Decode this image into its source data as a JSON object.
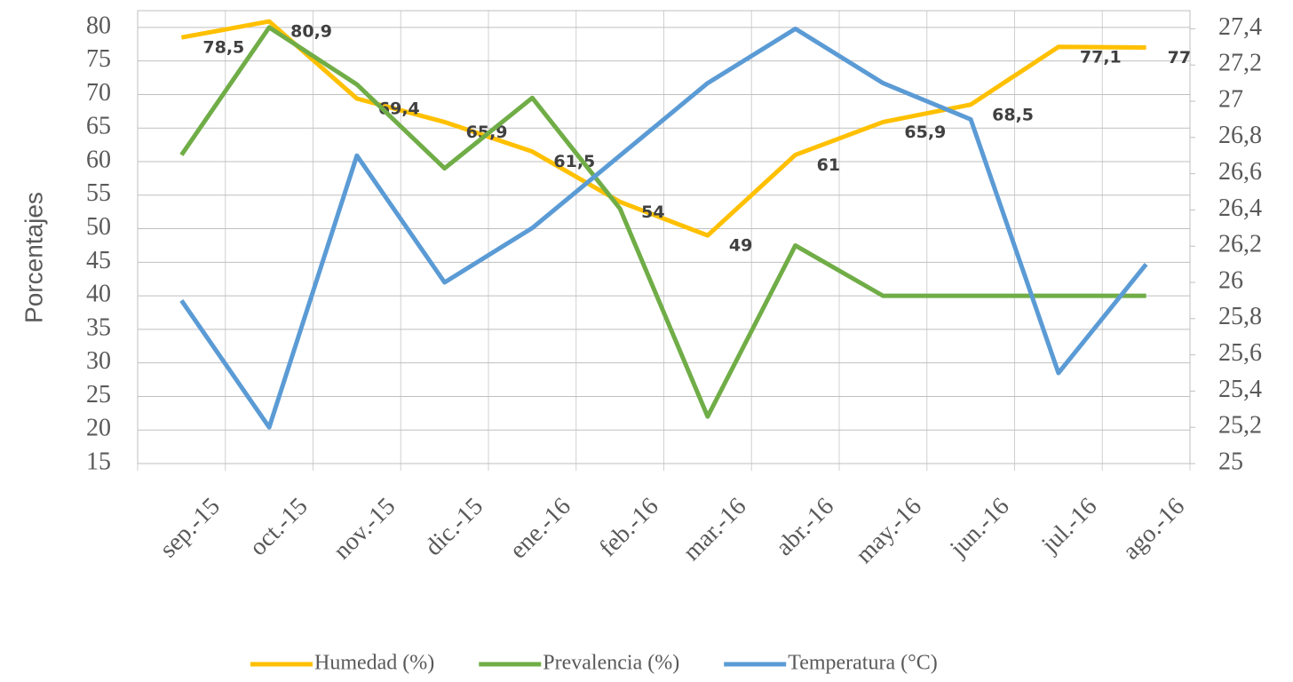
{
  "chart_data": {
    "type": "line",
    "y_label": "Porcentajes",
    "categories": [
      "sep.-15",
      "oct.-15",
      "nov.-15",
      "dic.-15",
      "ene.-16",
      "feb.-16",
      "mar.-16",
      "abr.-16",
      "may.-16",
      "jun.-16",
      "jul.-16",
      "ago.-16"
    ],
    "series": [
      {
        "name": "Humedad (%)",
        "color": "#FFC000",
        "values": [
          78.5,
          80.9,
          69.4,
          65.9,
          61.5,
          54,
          49,
          61,
          65.9,
          68.5,
          77.1,
          77
        ],
        "value_labels": [
          "78,5",
          "80,9",
          "69,4",
          "65,9",
          "61,5",
          "54",
          "49",
          "61",
          "65,9",
          "68,5",
          "77,1",
          "77"
        ]
      },
      {
        "name": "Prevalencia (%)",
        "color": "#70AD47",
        "values": [
          61,
          80,
          71.5,
          59,
          69.5,
          53,
          22,
          47.5,
          40,
          40,
          40,
          40
        ]
      },
      {
        "name": "Temperatura (°C)",
        "color": "#5B9BD5",
        "axis": "y2",
        "values": [
          25.9,
          25.2,
          26.7,
          26,
          26.3,
          26.7,
          27.1,
          27.4,
          27.1,
          26.9,
          25.5,
          26.1
        ]
      }
    ],
    "ylim": [
      15,
      82.5
    ],
    "yticks": [
      15,
      20,
      25,
      30,
      35,
      40,
      45,
      50,
      55,
      60,
      65,
      70,
      75,
      80
    ],
    "y2lim": [
      25,
      27.5
    ],
    "y2ticks": [
      25,
      {
        "value": 25.2,
        "label": "25,2"
      },
      {
        "value": 25.4,
        "label": "25,4"
      },
      {
        "value": 25.6,
        "label": "25,6"
      },
      {
        "value": 25.8,
        "label": "25,8"
      },
      26,
      {
        "value": 26.2,
        "label": "26,2"
      },
      {
        "value": 26.4,
        "label": "26,4"
      },
      {
        "value": 26.6,
        "label": "26,6"
      },
      {
        "value": 26.8,
        "label": "26,8"
      },
      27,
      {
        "value": 27.2,
        "label": "27,2"
      },
      {
        "value": 27.4,
        "label": "27,4"
      }
    ],
    "grid": true,
    "legend": "bottom"
  }
}
